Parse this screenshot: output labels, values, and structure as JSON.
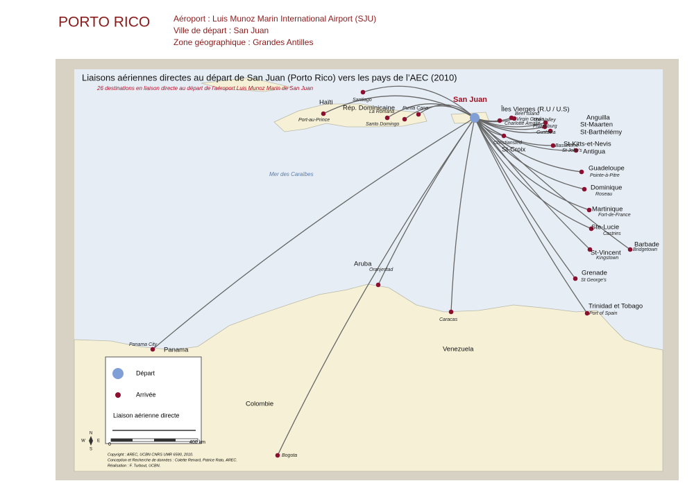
{
  "header": {
    "title": "PORTO RICO",
    "lines": [
      "Aéroport : Luis Munoz Marin International Airport (SJU)",
      "Ville de départ : San Juan",
      "Zone géographique : Grandes Antilles"
    ]
  },
  "map": {
    "title": "Liaisons aériennes directes au départ de San Juan (Porto Rico) vers les pays de l’AEC (2010)",
    "subtitle": "26 destinations en liaison directe au départ de l'aéroport Luis Munoz Marin de San Juan",
    "origin": "San Juan",
    "sea": "Mer des Caraïbes",
    "countries": [
      "Haïti",
      "Rép. Dominicaine",
      "Îles Vierges (R.U / U.S)",
      "Anguilla",
      "St-Maarten",
      "St-Barthélémy",
      "St-Kitts-et-Nevis",
      "Antigua",
      "St-Croix",
      "Guadeloupe",
      "Dominique",
      "Martinique",
      "Ste-Lucie",
      "Barbade",
      "St-Vincent",
      "Grenade",
      "Trinidad et Tobago",
      "Aruba",
      "Panama",
      "Venezuela",
      "Colombie"
    ],
    "cities": [
      "Santiago",
      "La Romana",
      "Punta Cana",
      "Port-au-Prince",
      "Santo Domingo",
      "Beef Island",
      "Virgin Gorda",
      "Charlotte Amalie",
      "The Valley",
      "Philipsburg",
      "Gustavia",
      "Christiansted",
      "Basseterre",
      "St John's",
      "Pointe-à-Pitre",
      "Roseau",
      "Fort-de-France",
      "Castries",
      "Bridgetown",
      "Kingstown",
      "St George's",
      "Port of Spain",
      "Oranjestad",
      "Caracas",
      "Panama City",
      "Bogota"
    ],
    "legend": {
      "departure": "Départ",
      "arrival": "Arrivée",
      "link": "Liaison aérienne directe"
    },
    "scale": {
      "start": "0",
      "end": "400 km"
    },
    "compass": [
      "N",
      "S",
      "E",
      "W"
    ],
    "credits": [
      "Copyright : AREC, UCBN CNRS UMR 6590, 2010.",
      "Conception et Recherche de données : Colette Renard, Patrice Rato, AREC.",
      "Réalisation : F. Turbout, UCBN."
    ]
  }
}
